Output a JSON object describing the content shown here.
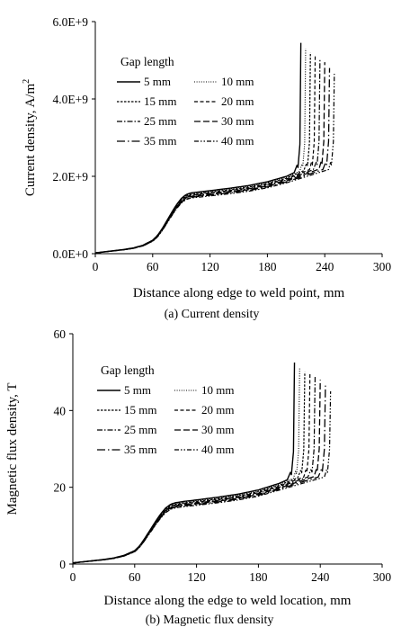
{
  "chart_data": [
    {
      "type": "line",
      "caption": "(a) Current density",
      "xlabel": "Distance along edge to weld point, mm",
      "ylabel": "Current density, A/m",
      "ylabel_superscript": "2",
      "xlim": [
        0,
        300
      ],
      "ylim": [
        0,
        6000000000.0
      ],
      "xticks": [
        "0",
        "60",
        "120",
        "180",
        "240",
        "300"
      ],
      "yticks": [
        "0.0E+0",
        "2.0E+9",
        "4.0E+9",
        "6.0E+9"
      ],
      "legend_title": "Gap length",
      "legend_position": "upper-left",
      "grid": false,
      "base_profile": {
        "x": [
          0,
          10,
          20,
          30,
          40,
          50,
          60,
          65,
          70,
          75,
          80,
          85,
          90,
          95,
          100,
          110,
          120,
          140,
          160,
          180,
          200
        ],
        "y": [
          20000000.0,
          50000000.0,
          80000000.0,
          110000000.0,
          150000000.0,
          220000000.0,
          350000000.0,
          470000000.0,
          650000000.0,
          860000000.0,
          1070000000.0,
          1270000000.0,
          1430000000.0,
          1530000000.0,
          1570000000.0,
          1600000000.0,
          1630000000.0,
          1690000000.0,
          1760000000.0,
          1860000000.0,
          2000000000.0
        ]
      },
      "series": [
        {
          "name": "5 mm",
          "end_x": 215,
          "end_y": 5450000000.0,
          "dash": "none",
          "width": 1.4
        },
        {
          "name": "10 mm",
          "end_x": 220,
          "end_y": 5300000000.0,
          "dash": "1,1.6",
          "width": 1.1
        },
        {
          "name": "15 mm",
          "end_x": 225,
          "end_y": 5200000000.0,
          "dash": "2.5,1.5",
          "width": 1.2
        },
        {
          "name": "20 mm",
          "end_x": 230,
          "end_y": 5150000000.0,
          "dash": "4,2.5",
          "width": 1.2
        },
        {
          "name": "25 mm",
          "end_x": 235,
          "end_y": 5050000000.0,
          "dash": "6,2,1.5,2",
          "width": 1.2
        },
        {
          "name": "30 mm",
          "end_x": 240,
          "end_y": 4950000000.0,
          "dash": "7,3",
          "width": 1.3
        },
        {
          "name": "35 mm",
          "end_x": 245,
          "end_y": 4800000000.0,
          "dash": "9,3,1.5,3",
          "width": 1.3
        },
        {
          "name": "40 mm",
          "end_x": 250,
          "end_y": 4650000000.0,
          "dash": "5,2,1.5,2,1.5,2",
          "width": 1.2
        }
      ]
    },
    {
      "type": "line",
      "caption": "(b) Magnetic flux density",
      "xlabel": "Distance along the edge to weld location, mm",
      "ylabel": "Magnetic flux density, T",
      "ylabel_superscript": "",
      "xlim": [
        0,
        300
      ],
      "ylim": [
        0,
        60
      ],
      "xticks": [
        "0",
        "60",
        "120",
        "180",
        "240",
        "300"
      ],
      "yticks": [
        "0",
        "20",
        "40",
        "60"
      ],
      "legend_title": "Gap length",
      "legend_position": "upper-left",
      "grid": false,
      "base_profile": {
        "x": [
          0,
          10,
          20,
          30,
          40,
          50,
          60,
          65,
          70,
          75,
          80,
          85,
          90,
          95,
          100,
          110,
          120,
          140,
          160,
          180,
          200
        ],
        "y": [
          0.3,
          0.6,
          0.9,
          1.2,
          1.6,
          2.3,
          3.5,
          4.8,
          6.8,
          8.9,
          11.0,
          13.0,
          14.6,
          15.6,
          16.0,
          16.4,
          16.7,
          17.4,
          18.2,
          19.3,
          21.0
        ]
      },
      "series": [
        {
          "name": "5 mm",
          "end_x": 215,
          "end_y": 52.5,
          "dash": "none",
          "width": 1.4
        },
        {
          "name": "10 mm",
          "end_x": 220,
          "end_y": 51.0,
          "dash": "1,1.6",
          "width": 1.1
        },
        {
          "name": "15 mm",
          "end_x": 225,
          "end_y": 50.0,
          "dash": "2.5,1.5",
          "width": 1.2
        },
        {
          "name": "20 mm",
          "end_x": 230,
          "end_y": 49.5,
          "dash": "4,2.5",
          "width": 1.2
        },
        {
          "name": "25 mm",
          "end_x": 235,
          "end_y": 49.0,
          "dash": "6,2,1.5,2",
          "width": 1.2
        },
        {
          "name": "30 mm",
          "end_x": 240,
          "end_y": 48.0,
          "dash": "7,3",
          "width": 1.3
        },
        {
          "name": "35 mm",
          "end_x": 245,
          "end_y": 46.5,
          "dash": "9,3,1.5,3",
          "width": 1.3
        },
        {
          "name": "40 mm",
          "end_x": 250,
          "end_y": 45.0,
          "dash": "5,2,1.5,2,1.5,2",
          "width": 1.2
        }
      ]
    }
  ]
}
